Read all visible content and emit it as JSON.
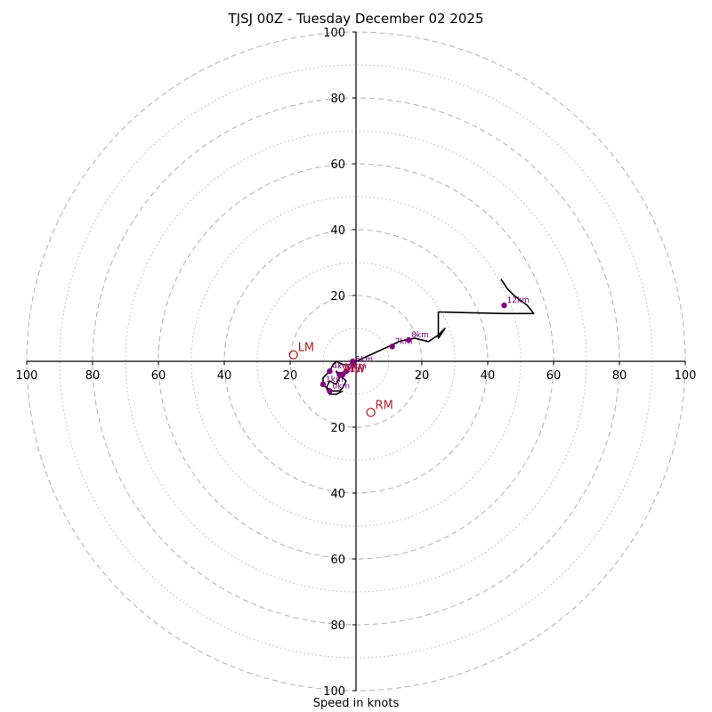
{
  "chart_data": {
    "type": "hodograph",
    "title": "TJSJ 00Z - Tuesday December 02 2025",
    "xlabel": "Speed in knots",
    "range": [
      -100,
      100
    ],
    "ring_major": [
      20,
      40,
      60,
      80,
      100
    ],
    "ring_minor": [
      10,
      30,
      50,
      70,
      90
    ],
    "tick_values": [
      20,
      40,
      60,
      80,
      100
    ],
    "wind_profile": [
      [
        0,
        0
      ],
      [
        11,
        5
      ],
      [
        13,
        6
      ],
      [
        15,
        6.5
      ],
      [
        18,
        7
      ],
      [
        22,
        6
      ],
      [
        25,
        8
      ],
      [
        27,
        10
      ],
      [
        25,
        7
      ],
      [
        25,
        9
      ],
      [
        25,
        10
      ],
      [
        25,
        12
      ],
      [
        25,
        15
      ],
      [
        45,
        14.5
      ],
      [
        54,
        14.5
      ],
      [
        52,
        17
      ],
      [
        48,
        20
      ],
      [
        46,
        22
      ],
      [
        44,
        25
      ]
    ],
    "low_level_path": [
      [
        -1,
        -1
      ],
      [
        -4,
        -1
      ],
      [
        -6,
        0
      ],
      [
        -7,
        -1
      ],
      [
        -8,
        -3
      ],
      [
        -10,
        -5
      ],
      [
        -10,
        -7
      ],
      [
        -9,
        -8
      ],
      [
        -7,
        -9
      ],
      [
        -5,
        -9
      ],
      [
        -4,
        -8
      ],
      [
        -3,
        -6
      ],
      [
        -4,
        -5
      ],
      [
        -5,
        -4
      ],
      [
        -6,
        -3
      ],
      [
        -5,
        -5
      ],
      [
        -6,
        -7
      ],
      [
        -8,
        -6
      ],
      [
        -9,
        -8
      ],
      [
        -8,
        -10
      ],
      [
        -6,
        -10
      ],
      [
        -4,
        -9
      ]
    ],
    "height_markers": [
      {
        "label": "",
        "u": -1,
        "v": 0
      },
      {
        "label": "6km",
        "u": -1,
        "v": -1
      },
      {
        "label": "5km",
        "u": -3,
        "v": -3
      },
      {
        "label": "4km",
        "u": -8,
        "v": -3
      },
      {
        "label": "3km",
        "u": -5,
        "v": -4
      },
      {
        "label": "2km",
        "u": -4,
        "v": -4
      },
      {
        "label": "1km",
        "u": -10,
        "v": -7
      },
      {
        "label": "0km",
        "u": -8,
        "v": -9
      },
      {
        "label": "7km",
        "u": 11,
        "v": 4.5
      },
      {
        "label": "8km",
        "u": 16,
        "v": 6.5
      },
      {
        "label": "12km",
        "u": 45,
        "v": 17
      }
    ],
    "storm_motion": [
      {
        "label": "LM",
        "u": -19,
        "v": 2
      },
      {
        "label": "RM",
        "u": 4.5,
        "v": -15.5
      },
      {
        "label": "MW",
        "u": -5,
        "v": -4.5
      }
    ],
    "colors": {
      "profile": "#000000",
      "marker": "#800080",
      "storm": "#b22222",
      "grid": "#bbbbbb",
      "axis": "#000000"
    }
  }
}
